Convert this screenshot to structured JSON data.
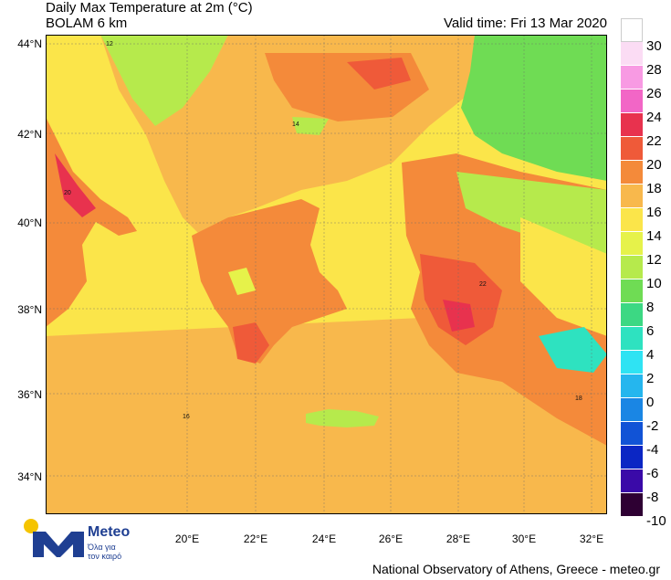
{
  "header": {
    "title": "Daily Max Temperature at 2m (°C)",
    "subtitle": "BOLAM 6 km",
    "valid_time": "Valid time: Fri 13 Mar 2020"
  },
  "axes": {
    "latitudes": [
      "44°N",
      "42°N",
      "40°N",
      "38°N",
      "36°N",
      "34°N"
    ],
    "longitudes": [
      "20°E",
      "22°E",
      "24°E",
      "26°E",
      "28°E",
      "30°E",
      "32°E"
    ]
  },
  "legend": {
    "labels": [
      "30",
      "28",
      "26",
      "24",
      "22",
      "20",
      "18",
      "16",
      "14",
      "12",
      "10",
      "8",
      "6",
      "4",
      "2",
      "0",
      "-2",
      "-4",
      "-6",
      "-8",
      "-10"
    ],
    "colors": [
      "#ffffff",
      "#fbdcf4",
      "#f89ae3",
      "#f266c6",
      "#e8324e",
      "#ef5a39",
      "#f48a3a",
      "#f8b84c",
      "#fbe54a",
      "#e6f24a",
      "#b6ea4c",
      "#6fdc54",
      "#3cd883",
      "#2ee2c0",
      "#2fe3f3",
      "#25b6ee",
      "#1a86e4",
      "#1153d6",
      "#0b26c4",
      "#3a0aa8",
      "#2e0033"
    ]
  },
  "map": {
    "labels": [
      {
        "t": "12"
      },
      {
        "t": "14"
      },
      {
        "t": "16"
      },
      {
        "t": "18"
      },
      {
        "t": "20"
      },
      {
        "t": "22"
      }
    ]
  },
  "logo": {
    "brand": "Meteo",
    "tagline_1": "Όλα για",
    "tagline_2": "τον καιρό"
  },
  "footer": {
    "credit": "National Observatory of Athens, Greece - meteo.gr"
  }
}
